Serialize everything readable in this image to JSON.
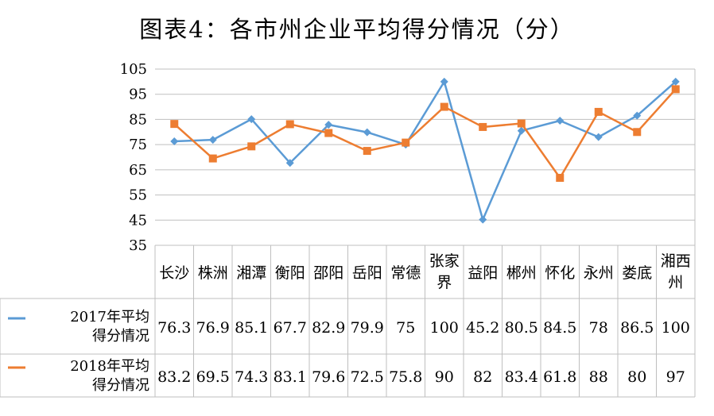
{
  "chart_data": {
    "type": "line",
    "title": "图表4：各市州企业平均得分情况（分）",
    "xlabel": "",
    "ylabel": "",
    "ylim": [
      35,
      105
    ],
    "yticks": [
      "105",
      "95",
      "85",
      "75",
      "65",
      "55",
      "45",
      "35"
    ],
    "grid": true,
    "legend": "none",
    "categories": [
      [
        "长沙"
      ],
      [
        "株洲"
      ],
      [
        "湘潭"
      ],
      [
        "衡阳"
      ],
      [
        "邵阳"
      ],
      [
        "岳阳"
      ],
      [
        "常德"
      ],
      [
        "张家",
        "界"
      ],
      [
        "益阳"
      ],
      [
        "郴州"
      ],
      [
        "怀化"
      ],
      [
        "永州"
      ],
      [
        "娄底"
      ],
      [
        "湘西",
        "州"
      ]
    ],
    "series": [
      {
        "name": [
          "2017年平均",
          "得分情况"
        ],
        "color": "#5B9BD5",
        "marker": "diamond",
        "values": [
          76.3,
          76.9,
          85.1,
          67.7,
          82.9,
          79.9,
          75,
          100,
          45.2,
          80.5,
          84.5,
          78,
          86.5,
          100
        ],
        "labels": [
          "76.3",
          "76.9",
          "85.1",
          "67.7",
          "82.9",
          "79.9",
          "75",
          "100",
          "45.2",
          "80.5",
          "84.5",
          "78",
          "86.5",
          "100"
        ]
      },
      {
        "name": [
          "2018年平均",
          "得分情况"
        ],
        "color": "#ED7D31",
        "marker": "square",
        "values": [
          83.2,
          69.5,
          74.3,
          83.1,
          79.6,
          72.5,
          75.8,
          90,
          82,
          83.4,
          61.8,
          88,
          80,
          97
        ],
        "labels": [
          "83.2",
          "69.5",
          "74.3",
          "83.1",
          "79.6",
          "72.5",
          "75.8",
          "90",
          "82",
          "83.4",
          "61.8",
          "88",
          "80",
          "97"
        ]
      }
    ]
  }
}
